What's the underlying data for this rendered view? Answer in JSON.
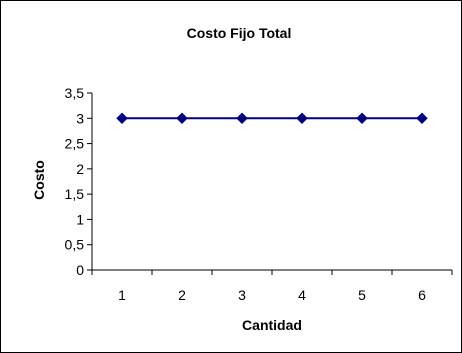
{
  "chart_data": {
    "type": "line",
    "title": "Costo Fijo Total",
    "xlabel": "Cantidad",
    "ylabel": "Costo",
    "categories": [
      "1",
      "2",
      "3",
      "4",
      "5",
      "6"
    ],
    "series": [
      {
        "values": [
          3,
          3,
          3,
          3,
          3,
          3
        ],
        "color": "#000080",
        "marker": "diamond"
      }
    ],
    "ylim": [
      0,
      3.5
    ],
    "yticks": [
      "0",
      "0,5",
      "1",
      "1,5",
      "2",
      "2,5",
      "3",
      "3,5"
    ],
    "grid": false,
    "legend": "none"
  }
}
